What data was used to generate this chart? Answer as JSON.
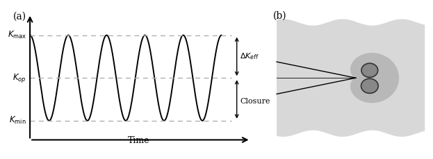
{
  "fig_width": 6.23,
  "fig_height": 2.29,
  "dpi": 100,
  "bg_color": "#ffffff",
  "panel_a_label": "(a)",
  "panel_b_label": "(b)",
  "sine_periods": 5,
  "K_max": 1.0,
  "K_op": 0.0,
  "K_min": -1.0,
  "x_label": "Time",
  "dashed_color": "#b0b0b0",
  "sine_color": "#000000",
  "label_Kmax": "$K_{\\mathrm{max}}$",
  "label_Kop": "$K_{op}$",
  "label_Kmin": "$K_{\\mathrm{min}}$",
  "label_DeltaK": "$\\Delta K_{eff}$",
  "label_Closure": "Closure",
  "bg_light_gray": "#d8d8d8",
  "plastic_zone_gray": "#b8b8b8",
  "lobe_dark_gray": "#888888",
  "lobe_edge": "#333333"
}
